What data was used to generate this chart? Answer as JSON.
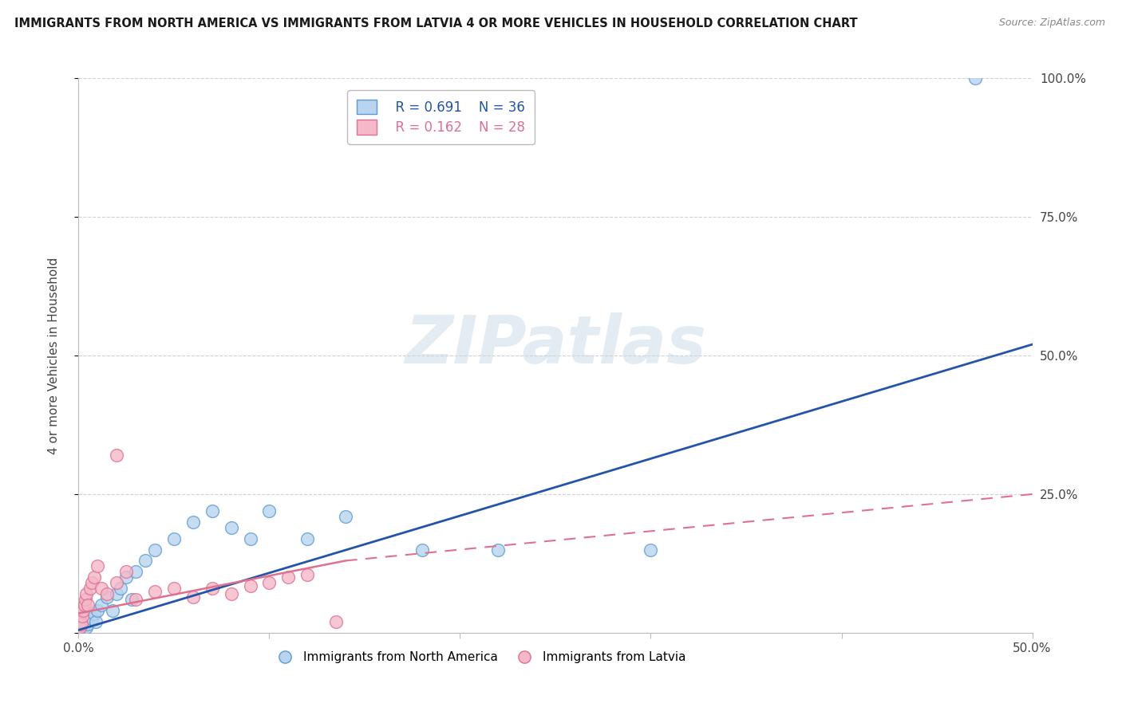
{
  "title": "IMMIGRANTS FROM NORTH AMERICA VS IMMIGRANTS FROM LATVIA 4 OR MORE VEHICLES IN HOUSEHOLD CORRELATION CHART",
  "source": "Source: ZipAtlas.com",
  "ylabel": "4 or more Vehicles in Household",
  "xlim": [
    0.0,
    50.0
  ],
  "ylim": [
    0.0,
    100.0
  ],
  "legend_r1": "R = 0.691",
  "legend_n1": "N = 36",
  "legend_r2": "R = 0.162",
  "legend_n2": "N = 28",
  "blue_fill": "#b8d4ee",
  "blue_edge": "#5b9bd5",
  "pink_fill": "#f4b8c8",
  "pink_edge": "#e07090",
  "blue_line_color": "#2255aa",
  "pink_line_color": "#e07090",
  "watermark": "ZIPatlas",
  "blue_line_x0": 0.0,
  "blue_line_y0": 0.5,
  "blue_line_x1": 50.0,
  "blue_line_y1": 52.0,
  "pink_line_x0": 0.0,
  "pink_line_y0": 3.5,
  "pink_line_x1": 14.0,
  "pink_line_y1": 13.0,
  "pink_dash_x0": 14.0,
  "pink_dash_y0": 13.0,
  "pink_dash_x1": 50.0,
  "pink_dash_y1": 25.0,
  "blue_scatter_x": [
    0.1,
    0.15,
    0.2,
    0.25,
    0.3,
    0.35,
    0.4,
    0.45,
    0.5,
    0.6,
    0.7,
    0.8,
    0.9,
    1.0,
    1.2,
    1.5,
    1.8,
    2.0,
    2.2,
    2.5,
    2.8,
    3.0,
    3.5,
    4.0,
    5.0,
    6.0,
    7.0,
    8.0,
    9.0,
    10.0,
    12.0,
    14.0,
    18.0,
    22.0,
    30.0,
    47.0
  ],
  "blue_scatter_y": [
    1.0,
    1.5,
    2.0,
    1.2,
    1.8,
    2.5,
    1.0,
    2.0,
    1.5,
    3.0,
    2.5,
    3.5,
    2.0,
    4.0,
    5.0,
    6.5,
    4.0,
    7.0,
    8.0,
    10.0,
    6.0,
    11.0,
    13.0,
    15.0,
    17.0,
    20.0,
    22.0,
    19.0,
    17.0,
    22.0,
    17.0,
    21.0,
    15.0,
    15.0,
    15.0,
    100.0
  ],
  "pink_scatter_x": [
    0.05,
    0.1,
    0.15,
    0.2,
    0.25,
    0.3,
    0.35,
    0.4,
    0.5,
    0.6,
    0.7,
    0.8,
    1.0,
    1.2,
    1.5,
    2.0,
    2.5,
    3.0,
    4.0,
    5.0,
    6.0,
    7.0,
    8.0,
    9.0,
    10.0,
    11.0,
    12.0,
    13.5
  ],
  "pink_scatter_y": [
    1.0,
    2.0,
    1.5,
    3.0,
    4.0,
    5.0,
    6.0,
    7.0,
    5.0,
    8.0,
    9.0,
    10.0,
    12.0,
    8.0,
    7.0,
    9.0,
    11.0,
    6.0,
    7.5,
    8.0,
    6.5,
    8.0,
    7.0,
    8.5,
    9.0,
    10.0,
    10.5,
    2.0
  ],
  "pink_outlier_x": 2.0,
  "pink_outlier_y": 32.0
}
